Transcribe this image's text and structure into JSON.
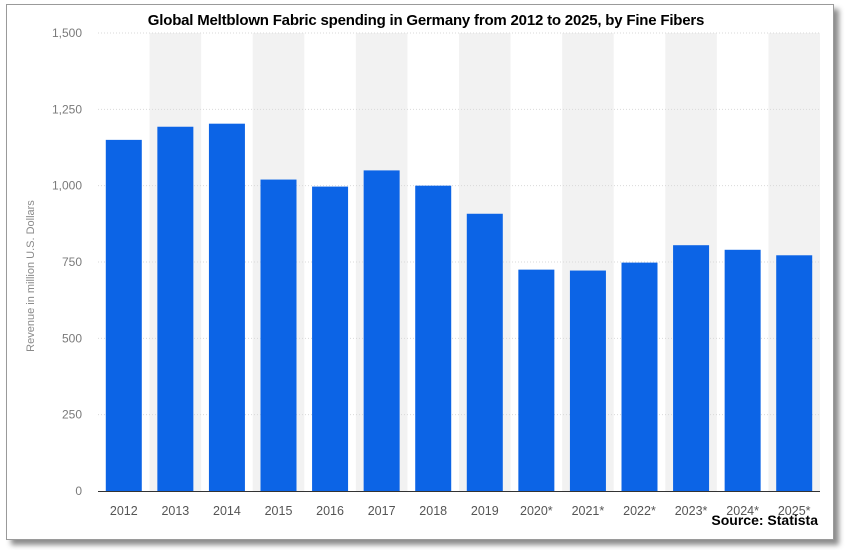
{
  "chart_data": {
    "type": "bar",
    "title": "Global Meltblown Fabric spending in Germany from 2012 to 2025, by Fine Fibers",
    "ylabel": "Revenue in million U.S. Dollars",
    "xlabel": "",
    "categories": [
      "2012",
      "2013",
      "2014",
      "2015",
      "2016",
      "2017",
      "2018",
      "2019",
      "2020*",
      "2021*",
      "2022*",
      "2023*",
      "2024*",
      "2025*"
    ],
    "values": [
      1150,
      1193,
      1203,
      1020,
      997,
      1050,
      1000,
      908,
      725,
      722,
      748,
      805,
      790,
      772
    ],
    "ylim": [
      0,
      1500
    ],
    "yticks": [
      "0",
      "250",
      "500",
      "750",
      "1,000",
      "1,250",
      "1,500"
    ],
    "ytick_values": [
      0,
      250,
      500,
      750,
      1000,
      1250,
      1500
    ],
    "bar_color": "#0c64e6",
    "band_color": "#f2f2f2",
    "grid": true
  },
  "source": "Source: Statista"
}
